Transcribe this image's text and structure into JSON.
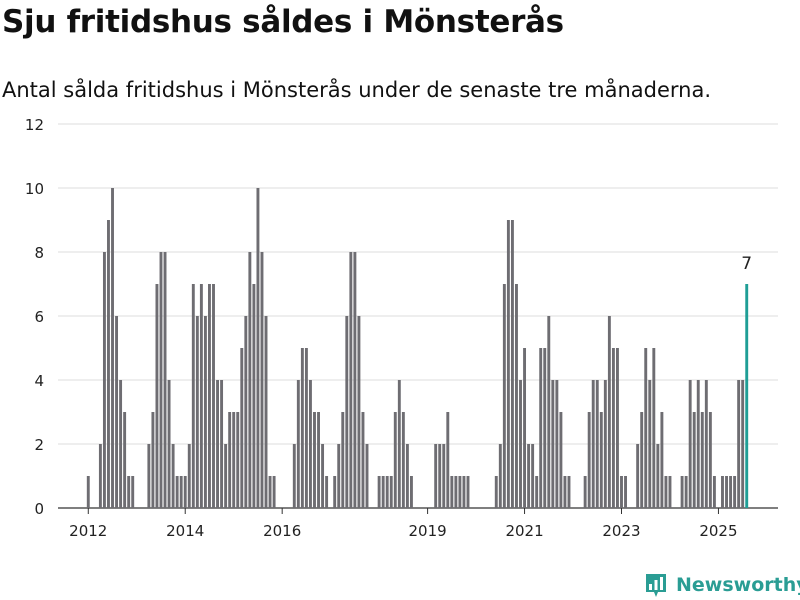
{
  "header": {
    "title": "Sju fritidshus såldes i Mönsterås",
    "subtitle": "Antal sålda fritidshus i Mönsterås under de senaste tre månaderna."
  },
  "brand": {
    "name": "Newsworthy",
    "icon": "newsworthy-logo-icon"
  },
  "colors": {
    "bar": "#6e6d72",
    "highlight": "#1f9e96",
    "grid": "#dcdcdc",
    "axis": "#333333",
    "brand": "#2a9d94"
  },
  "chart_data": {
    "type": "bar",
    "title": "Sju fritidshus såldes i Mönsterås",
    "subtitle": "Antal sålda fritidshus i Mönsterås under de senaste tre månaderna.",
    "xlabel": "",
    "ylabel": "",
    "ylim": [
      0,
      12
    ],
    "yticks": [
      0,
      2,
      4,
      6,
      8,
      10,
      12
    ],
    "xticks": [
      "2012",
      "2014",
      "2016",
      "2019",
      "2021",
      "2023",
      "2025"
    ],
    "grid": true,
    "categories": [
      "2012-01",
      "2012-02",
      "2012-03",
      "2012-04",
      "2012-05",
      "2012-06",
      "2012-07",
      "2012-08",
      "2012-09",
      "2012-10",
      "2012-11",
      "2012-12",
      "2013-01",
      "2013-02",
      "2013-03",
      "2013-04",
      "2013-05",
      "2013-06",
      "2013-07",
      "2013-08",
      "2013-09",
      "2013-10",
      "2013-11",
      "2013-12",
      "2014-01",
      "2014-02",
      "2014-03",
      "2014-04",
      "2014-05",
      "2014-06",
      "2014-07",
      "2014-08",
      "2014-09",
      "2014-10",
      "2014-11",
      "2014-12",
      "2015-01",
      "2015-02",
      "2015-03",
      "2015-04",
      "2015-05",
      "2015-06",
      "2015-07",
      "2015-08",
      "2015-09",
      "2015-10",
      "2015-11",
      "2015-12",
      "2016-01",
      "2016-02",
      "2016-03",
      "2016-04",
      "2016-05",
      "2016-06",
      "2016-07",
      "2016-08",
      "2016-09",
      "2016-10",
      "2016-11",
      "2016-12",
      "2017-01",
      "2017-02",
      "2017-03",
      "2017-04",
      "2017-05",
      "2017-06",
      "2017-07",
      "2017-08",
      "2017-09",
      "2017-10",
      "2017-11",
      "2017-12",
      "2018-01",
      "2018-02",
      "2018-03",
      "2018-04",
      "2018-05",
      "2018-06",
      "2018-07",
      "2018-08",
      "2018-09",
      "2018-10",
      "2018-11",
      "2018-12",
      "2019-01",
      "2019-02",
      "2019-03",
      "2019-04",
      "2019-05",
      "2019-06",
      "2019-07",
      "2019-08",
      "2019-09",
      "2019-10",
      "2019-11",
      "2019-12",
      "2020-01",
      "2020-02",
      "2020-03",
      "2020-04",
      "2020-05",
      "2020-06",
      "2020-07",
      "2020-08",
      "2020-09",
      "2020-10",
      "2020-11",
      "2020-12",
      "2021-01",
      "2021-02",
      "2021-03",
      "2021-04",
      "2021-05",
      "2021-06",
      "2021-07",
      "2021-08",
      "2021-09",
      "2021-10",
      "2021-11",
      "2021-12",
      "2022-01",
      "2022-02",
      "2022-03",
      "2022-04",
      "2022-05",
      "2022-06",
      "2022-07",
      "2022-08",
      "2022-09",
      "2022-10",
      "2022-11",
      "2022-12",
      "2023-01",
      "2023-02",
      "2023-03",
      "2023-04",
      "2023-05",
      "2023-06",
      "2023-07",
      "2023-08",
      "2023-09",
      "2023-10",
      "2023-11",
      "2023-12",
      "2024-01",
      "2024-02",
      "2024-03",
      "2024-04",
      "2024-05",
      "2024-06",
      "2024-07",
      "2024-08",
      "2024-09",
      "2024-10",
      "2024-11",
      "2024-12",
      "2025-01",
      "2025-02",
      "2025-03",
      "2025-04",
      "2025-05",
      "2025-06",
      "2025-07",
      "2025-08"
    ],
    "values": [
      1,
      0,
      0,
      2,
      8,
      9,
      10,
      6,
      4,
      3,
      1,
      1,
      0,
      0,
      0,
      2,
      3,
      7,
      8,
      8,
      4,
      2,
      1,
      1,
      1,
      2,
      7,
      6,
      7,
      6,
      7,
      7,
      4,
      4,
      2,
      3,
      3,
      3,
      5,
      6,
      8,
      7,
      10,
      8,
      6,
      1,
      1,
      0,
      0,
      0,
      0,
      2,
      4,
      5,
      5,
      4,
      3,
      3,
      2,
      1,
      0,
      1,
      2,
      3,
      6,
      8,
      8,
      6,
      3,
      2,
      0,
      0,
      1,
      1,
      1,
      1,
      3,
      4,
      3,
      2,
      1,
      0,
      0,
      0,
      0,
      0,
      2,
      2,
      2,
      3,
      1,
      1,
      1,
      1,
      1,
      0,
      0,
      0,
      0,
      0,
      0,
      1,
      2,
      7,
      9,
      9,
      7,
      4,
      5,
      2,
      2,
      1,
      5,
      5,
      6,
      4,
      4,
      3,
      1,
      1,
      0,
      0,
      0,
      1,
      3,
      4,
      4,
      3,
      4,
      6,
      5,
      5,
      1,
      1,
      0,
      0,
      2,
      3,
      5,
      4,
      5,
      2,
      3,
      1,
      1,
      0,
      0,
      1,
      1,
      4,
      3,
      4,
      3,
      4,
      3,
      1,
      0,
      1,
      1,
      1,
      1,
      4,
      4,
      7
    ],
    "highlight_label": "7"
  }
}
